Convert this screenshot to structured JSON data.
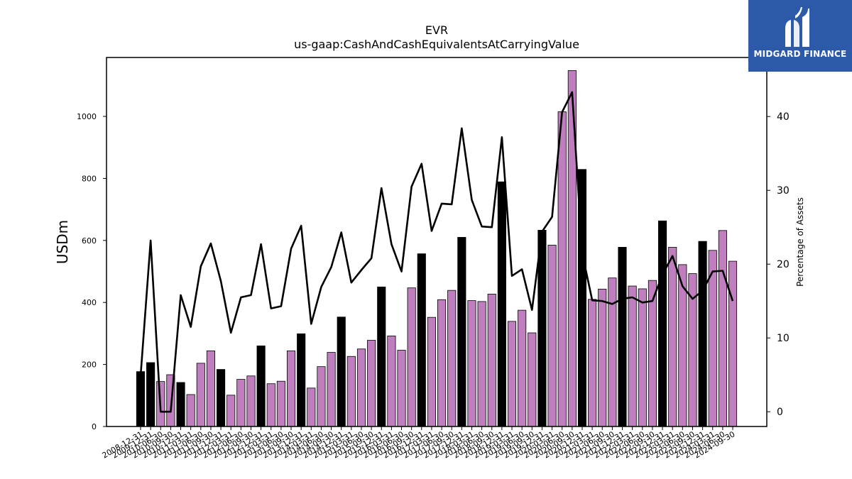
{
  "chart_data": {
    "type": "bar+line",
    "title": "EVR",
    "subtitle": "us-gaap:CashAndCashEquivalentsAtCarryingValue",
    "ylabel": "USDm",
    "y2label": "Percentage of Assets",
    "ylim": [
      0,
      1190
    ],
    "y2lim": [
      -2,
      48
    ],
    "yticks": [
      0,
      200,
      400,
      600,
      800,
      1000
    ],
    "y2ticks": [
      0,
      10,
      20,
      30,
      40
    ],
    "categories": [
      "2008-12-31",
      "2009-12-31",
      "2010-06-30",
      "2010-09-30",
      "2010-12-31",
      "2011-03-31",
      "2011-06-30",
      "2011-09-30",
      "2011-12-31",
      "2012-03-31",
      "2012-06-30",
      "2012-09-30",
      "2012-12-31",
      "2013-03-31",
      "2013-06-30",
      "2013-09-30",
      "2013-12-31",
      "2014-03-31",
      "2014-06-30",
      "2014-09-30",
      "2014-12-31",
      "2015-03-31",
      "2015-06-30",
      "2015-09-30",
      "2015-12-31",
      "2016-03-31",
      "2016-06-30",
      "2016-09-30",
      "2016-12-31",
      "2017-03-31",
      "2017-06-30",
      "2017-09-30",
      "2017-12-31",
      "2018-03-31",
      "2018-06-30",
      "2018-09-30",
      "2018-12-31",
      "2019-03-31",
      "2019-06-30",
      "2019-09-30",
      "2019-12-31",
      "2020-03-31",
      "2020-06-30",
      "2020-09-30",
      "2020-12-31",
      "2021-03-31",
      "2021-06-30",
      "2021-09-30",
      "2021-12-31",
      "2022-03-31",
      "2022-06-30",
      "2022-09-30",
      "2022-12-31",
      "2023-03-31",
      "2023-06-30",
      "2023-09-30",
      "2023-12-31",
      "2024-03-31",
      "2024-06-30",
      "2024-09-30"
    ],
    "series": [
      {
        "kind": "bar",
        "values": [
          177,
          206,
          145,
          167,
          142,
          103,
          204,
          244,
          184,
          101,
          152,
          163,
          260,
          138,
          146,
          244,
          299,
          124,
          193,
          239,
          353,
          226,
          250,
          278,
          450,
          292,
          246,
          447,
          557,
          352,
          409,
          439,
          610,
          406,
          403,
          427,
          789,
          339,
          375,
          302,
          633,
          585,
          1015,
          1148,
          829,
          410,
          443,
          479,
          578,
          453,
          444,
          471,
          663,
          578,
          522,
          493,
          597,
          568,
          632,
          533
        ],
        "year_end_highlight": [
          true,
          true,
          false,
          false,
          true,
          false,
          false,
          false,
          true,
          false,
          false,
          false,
          true,
          false,
          false,
          false,
          true,
          false,
          false,
          false,
          true,
          false,
          false,
          false,
          true,
          false,
          false,
          false,
          true,
          false,
          false,
          false,
          true,
          false,
          false,
          false,
          true,
          false,
          false,
          false,
          true,
          false,
          false,
          false,
          true,
          false,
          false,
          false,
          true,
          false,
          false,
          false,
          true,
          false,
          false,
          false,
          true,
          false,
          false,
          false
        ]
      },
      {
        "kind": "line",
        "axis": "right",
        "values": [
          4.8,
          23.2,
          0.0,
          0.0,
          15.8,
          11.5,
          19.7,
          22.8,
          17.7,
          10.7,
          15.5,
          15.8,
          22.7,
          14.0,
          14.3,
          22.1,
          25.2,
          11.9,
          16.9,
          19.6,
          24.3,
          17.5,
          19.2,
          20.8,
          30.3,
          22.7,
          19.0,
          30.5,
          33.6,
          24.5,
          28.2,
          28.1,
          38.4,
          28.7,
          25.1,
          25.0,
          37.2,
          18.4,
          19.3,
          13.8,
          24.4,
          26.4,
          40.6,
          43.3,
          21.5,
          15.1,
          15.0,
          14.6,
          15.3,
          15.5,
          14.8,
          15.0,
          18.6,
          21.1,
          17.0,
          15.3,
          16.4,
          19.0,
          19.1,
          15.0
        ]
      }
    ],
    "colors": {
      "bar": "#bf7fbf",
      "bar_highlight": "#000000",
      "line": "#000000",
      "axis": "#000000"
    },
    "grid": false
  },
  "logo": {
    "text": "MIDGARD FINANCE",
    "background": "#2d5aa8"
  }
}
